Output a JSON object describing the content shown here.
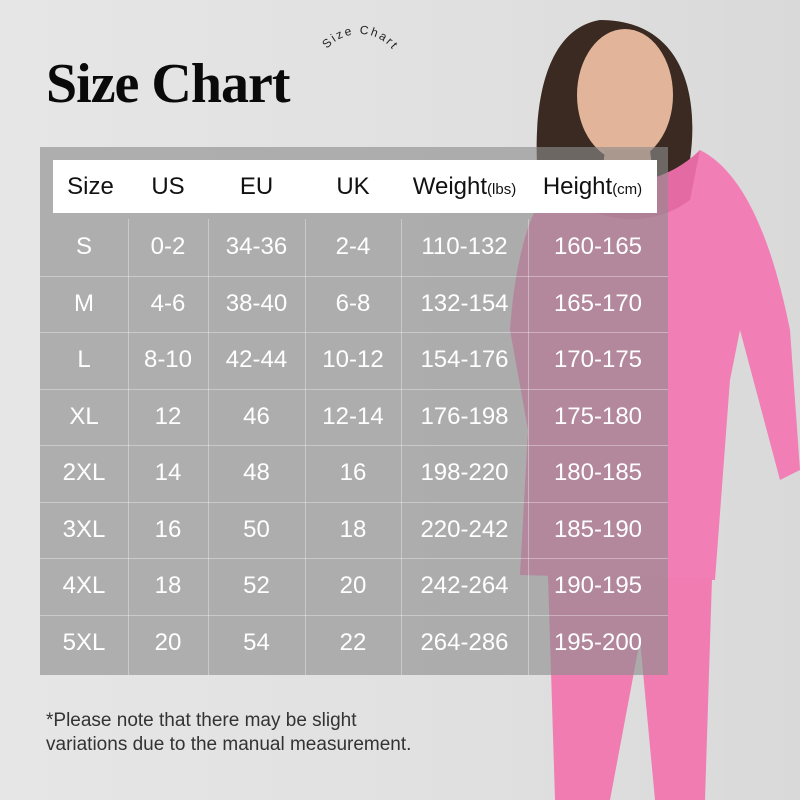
{
  "title": "Size Chart",
  "arc_text": "Size Chart",
  "headers": [
    {
      "main": "Size",
      "unit": ""
    },
    {
      "main": "US",
      "unit": ""
    },
    {
      "main": "EU",
      "unit": ""
    },
    {
      "main": "UK",
      "unit": ""
    },
    {
      "main": "Weight",
      "unit": "(lbs)"
    },
    {
      "main": "Height",
      "unit": "(cm)"
    }
  ],
  "rows": [
    [
      "S",
      "0-2",
      "34-36",
      "2-4",
      "110-132",
      "160-165"
    ],
    [
      "M",
      "4-6",
      "38-40",
      "6-8",
      "132-154",
      "165-170"
    ],
    [
      "L",
      "8-10",
      "42-44",
      "10-12",
      "154-176",
      "170-175"
    ],
    [
      "XL",
      "12",
      "46",
      "12-14",
      "176-198",
      "175-180"
    ],
    [
      "2XL",
      "14",
      "48",
      "16",
      "198-220",
      "180-185"
    ],
    [
      "3XL",
      "16",
      "50",
      "18",
      "220-242",
      "185-190"
    ],
    [
      "4XL",
      "18",
      "52",
      "20",
      "242-264",
      "190-195"
    ],
    [
      "5XL",
      "20",
      "54",
      "22",
      "264-286",
      "195-200"
    ]
  ],
  "note_lines": [
    "*Please note that there may be slight",
    "variations due to the manual measurement."
  ],
  "colors": {
    "hoodie": "#f17fb5",
    "hair": "#3a2a22",
    "table_overlay": "#8c8c8c"
  }
}
